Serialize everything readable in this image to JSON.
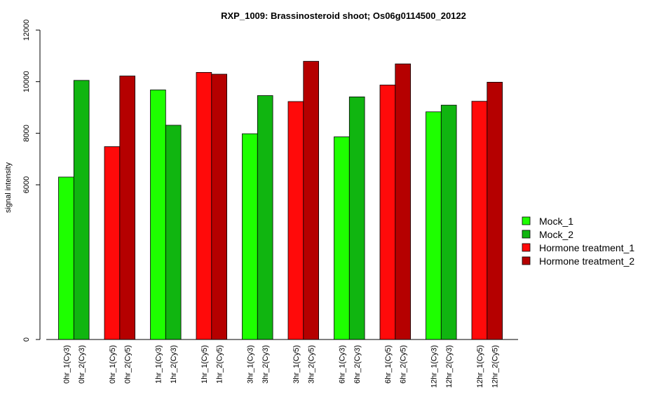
{
  "chart_data": {
    "type": "bar",
    "title": "RXP_1009: Brassinosteroid shoot; Os06g0114500_20122",
    "ylabel": "signal intensity",
    "xlabel": "",
    "ylim": [
      0,
      12000
    ],
    "yticks": [
      0,
      6000,
      8000,
      10000,
      12000
    ],
    "categories": [
      "0hr_1(Cy3)",
      "0hr_2(Cy3)",
      "0hr_1(Cy5)",
      "0hr_2(Cy5)",
      "1hr_1(Cy3)",
      "1hr_2(Cy3)",
      "1hr_1(Cy5)",
      "1hr_2(Cy5)",
      "3hr_1(Cy3)",
      "3hr_2(Cy3)",
      "3hr_1(Cy5)",
      "3hr_2(Cy5)",
      "6hr_1(Cy3)",
      "6hr_2(Cy3)",
      "6hr_1(Cy5)",
      "6hr_2(Cy5)",
      "12hr_1(Cy3)",
      "12hr_2(Cy3)",
      "12hr_1(Cy5)",
      "12hr_2(Cy5)"
    ],
    "values": [
      6300,
      10050,
      7480,
      10220,
      9680,
      8310,
      10360,
      10290,
      7980,
      9460,
      9230,
      10790,
      7860,
      9410,
      9870,
      10690,
      8830,
      9090,
      9240,
      9980
    ],
    "bar_series": [
      0,
      1,
      2,
      3,
      0,
      1,
      2,
      3,
      0,
      1,
      2,
      3,
      0,
      1,
      2,
      3,
      0,
      1,
      2,
      3
    ],
    "series": [
      {
        "name": "Mock_1",
        "color": "#1EFF00"
      },
      {
        "name": "Mock_2",
        "color": "#10B510"
      },
      {
        "name": "Hormone treatment_1",
        "color": "#FF0A0A"
      },
      {
        "name": "Hormone treatment_2",
        "color": "#B50000"
      }
    ],
    "legend_position": "right",
    "grid": false
  }
}
